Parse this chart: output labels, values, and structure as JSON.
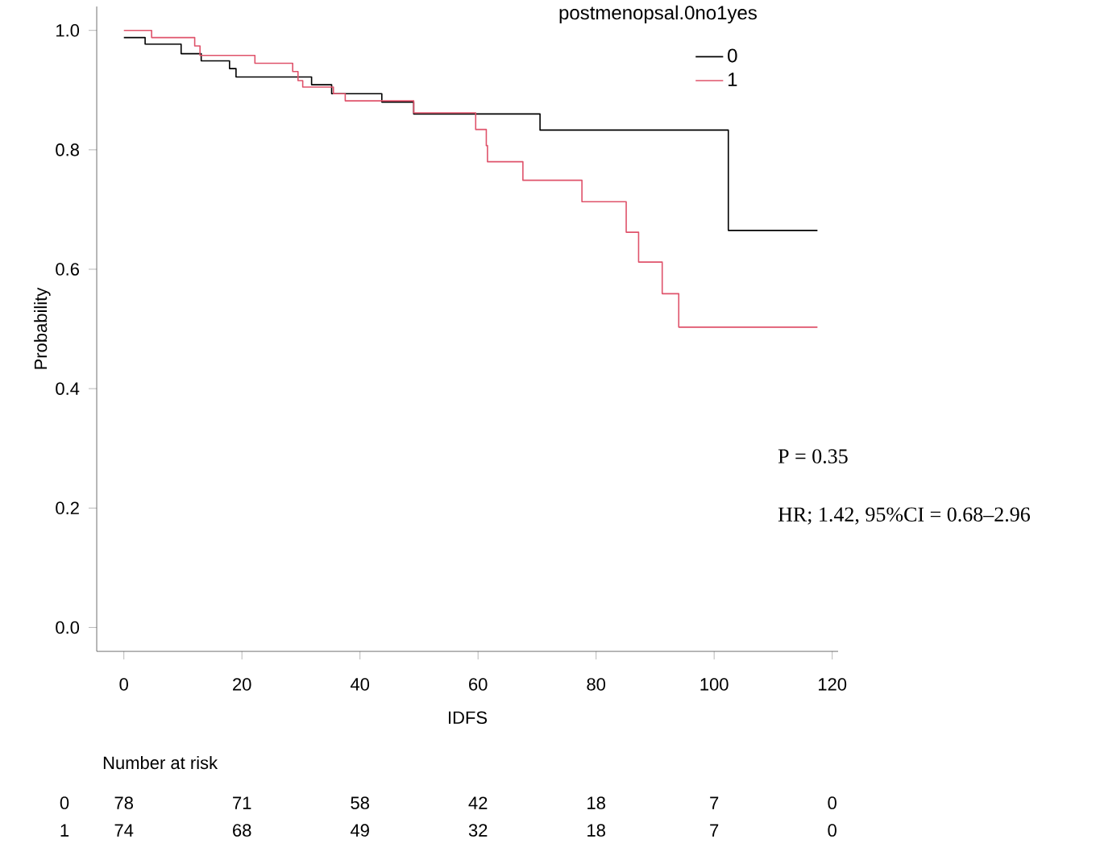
{
  "chart_data": {
    "type": "step",
    "xlabel": "IDFS",
    "ylabel": "Probability",
    "legend_title": "postmenopsal.0no1yes",
    "legend": "top right",
    "marker": "none",
    "xlim": [
      -4.6,
      121
    ],
    "ylim": [
      -0.04,
      1.04
    ],
    "xticks": [
      0,
      20,
      40,
      60,
      80,
      100,
      120
    ],
    "yticks": [
      {
        "value": 0,
        "label": "0.0"
      },
      0.2,
      0.4,
      0.6,
      0.8,
      {
        "value": 1,
        "label": "1.0"
      }
    ],
    "series": [
      {
        "name": "0",
        "color": "#000000",
        "x": [
          0,
          3.6,
          9.7,
          13.1,
          17.9,
          19,
          31.8,
          35.2,
          43.7,
          49.1,
          70.5,
          102.4,
          117.5
        ],
        "values": [
          0.988,
          0.977,
          0.961,
          0.949,
          0.936,
          0.922,
          0.909,
          0.894,
          0.88,
          0.86,
          0.833,
          0.665,
          0.665
        ]
      },
      {
        "name": "1",
        "color": "#df536b",
        "x": [
          0,
          4.7,
          12,
          12.9,
          22.2,
          28.6,
          29.5,
          30.3,
          35.5,
          37.5,
          49.1,
          59.6,
          61.4,
          61.6,
          67.6,
          77.6,
          85.1,
          87.2,
          91.2,
          94,
          117.5
        ],
        "values": [
          1.0,
          0.988,
          0.974,
          0.958,
          0.945,
          0.931,
          0.916,
          0.905,
          0.894,
          0.882,
          0.862,
          0.834,
          0.807,
          0.78,
          0.749,
          0.713,
          0.662,
          0.612,
          0.559,
          0.503,
          0.503
        ]
      }
    ],
    "annotations": [
      "P = 0.35",
      "HR; 1.42, 95%CI = 0.68–2.96",
      "Number at risk",
      "0",
      "78",
      "71",
      "58",
      "42",
      "18",
      "7",
      "0",
      "1",
      "74",
      "68",
      "49",
      "32",
      "18",
      "7",
      "0"
    ]
  }
}
